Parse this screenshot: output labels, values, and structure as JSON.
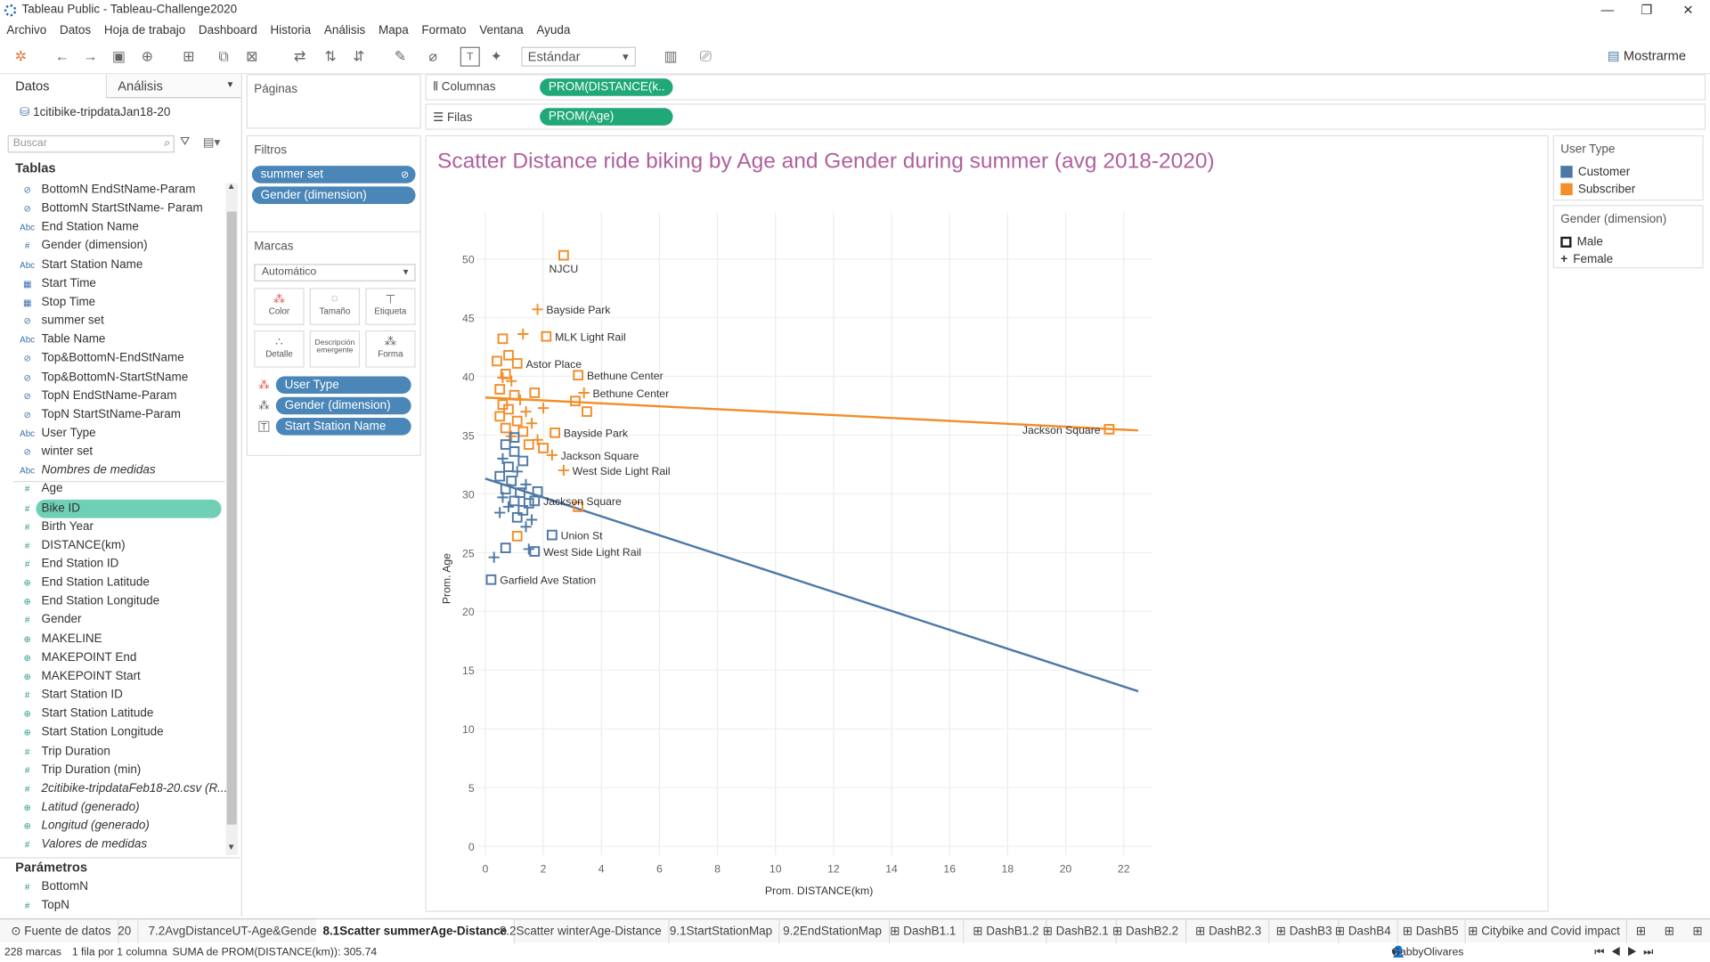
{
  "window": {
    "title": "Tableau Public - Tableau-Challenge2020"
  },
  "menu": [
    "Archivo",
    "Datos",
    "Hoja de trabajo",
    "Dashboard",
    "Historia",
    "Análisis",
    "Mapa",
    "Formato",
    "Ventana",
    "Ayuda"
  ],
  "toolbar": {
    "fit": "Estándar",
    "show_me": "Mostrarme"
  },
  "sidebar": {
    "tab_data": "Datos",
    "tab_analytics": "Análisis",
    "datasource": "1citibike-tripdataJan18-20",
    "search_placeholder": "Buscar",
    "tables_header": "Tablas",
    "params_header": "Parámetros",
    "fields": [
      {
        "label": "BottomN EndStName-Param",
        "icon": "set-icon",
        "kind": "dim"
      },
      {
        "label": "BottomN StartStName- Param",
        "icon": "set-icon",
        "kind": "dim"
      },
      {
        "label": "End Station Name",
        "icon": "abc-icon",
        "kind": "dim"
      },
      {
        "label": "Gender (dimension)",
        "icon": "number-icon",
        "kind": "dim"
      },
      {
        "label": "Start Station Name",
        "icon": "abc-icon",
        "kind": "dim"
      },
      {
        "label": "Start Time",
        "icon": "calendar-icon",
        "kind": "dim"
      },
      {
        "label": "Stop Time",
        "icon": "calendar-icon",
        "kind": "dim"
      },
      {
        "label": "summer set",
        "icon": "set-icon",
        "kind": "dim"
      },
      {
        "label": "Table Name",
        "icon": "abc-icon",
        "kind": "dim"
      },
      {
        "label": "Top&BottomN-EndStName",
        "icon": "set-icon",
        "kind": "dim"
      },
      {
        "label": "Top&BottomN-StartStName",
        "icon": "set-icon",
        "kind": "dim"
      },
      {
        "label": "TopN EndStName-Param",
        "icon": "set-icon",
        "kind": "dim"
      },
      {
        "label": "TopN StartStName-Param",
        "icon": "set-icon",
        "kind": "dim"
      },
      {
        "label": "User Type",
        "icon": "abc-icon",
        "kind": "dim"
      },
      {
        "label": "winter set",
        "icon": "set-icon",
        "kind": "dim"
      },
      {
        "label": "Nombres de medidas",
        "icon": "abc-icon",
        "kind": "dim",
        "italic": true
      },
      {
        "label": "Age",
        "icon": "number-icon",
        "kind": "mea"
      },
      {
        "label": "Bike ID",
        "icon": "number-icon",
        "kind": "mea",
        "selected": true
      },
      {
        "label": "Birth Year",
        "icon": "number-icon",
        "kind": "mea"
      },
      {
        "label": "DISTANCE(km)",
        "icon": "number-icon",
        "kind": "mea"
      },
      {
        "label": "End Station ID",
        "icon": "number-icon",
        "kind": "mea"
      },
      {
        "label": "End Station Latitude",
        "icon": "globe-icon",
        "kind": "mea"
      },
      {
        "label": "End Station Longitude",
        "icon": "globe-icon",
        "kind": "mea"
      },
      {
        "label": "Gender",
        "icon": "number-icon",
        "kind": "mea"
      },
      {
        "label": "MAKELINE",
        "icon": "globe-icon",
        "kind": "mea"
      },
      {
        "label": "MAKEPOINT End",
        "icon": "globe-icon",
        "kind": "mea"
      },
      {
        "label": "MAKEPOINT Start",
        "icon": "globe-icon",
        "kind": "mea"
      },
      {
        "label": "Start Station ID",
        "icon": "number-icon",
        "kind": "mea"
      },
      {
        "label": "Start Station Latitude",
        "icon": "globe-icon",
        "kind": "mea"
      },
      {
        "label": "Start Station Longitude",
        "icon": "globe-icon",
        "kind": "mea"
      },
      {
        "label": "Trip Duration",
        "icon": "number-icon",
        "kind": "mea"
      },
      {
        "label": "Trip Duration (min)",
        "icon": "number-icon",
        "kind": "mea"
      },
      {
        "label": "2citibike-tripdataFeb18-20.csv (R...",
        "icon": "number-icon",
        "kind": "mea",
        "italic": true
      },
      {
        "label": "Latitud (generado)",
        "icon": "globe-icon",
        "kind": "mea",
        "italic": true
      },
      {
        "label": "Longitud (generado)",
        "icon": "globe-icon",
        "kind": "mea",
        "italic": true
      },
      {
        "label": "Valores de medidas",
        "icon": "number-icon",
        "kind": "mea",
        "italic": true
      }
    ],
    "params": [
      {
        "label": "BottomN",
        "icon": "number-icon"
      },
      {
        "label": "TopN",
        "icon": "number-icon"
      }
    ]
  },
  "cards": {
    "pages": "Páginas",
    "filters": "Filtros",
    "filter_pills": [
      "summer set",
      "Gender (dimension)"
    ],
    "marks": "Marcas",
    "mark_type": "Automático",
    "mark_buttons": [
      "Color",
      "Tamaño",
      "Etiqueta",
      "Detalle",
      "Descripción emergente",
      "Forma"
    ],
    "mark_pills": [
      "User Type",
      "Gender (dimension)",
      "Start Station Name"
    ]
  },
  "shelves": {
    "columns_label": "Columnas",
    "rows_label": "Filas",
    "columns_pill": "PROM(DISTANCE(k..",
    "rows_pill": "PROM(Age)"
  },
  "legends": {
    "user_type": {
      "title": "User Type",
      "items": [
        {
          "label": "Customer",
          "color": "#4e79a7"
        },
        {
          "label": "Subscriber",
          "color": "#f28e2b"
        }
      ]
    },
    "gender": {
      "title": "Gender (dimension)",
      "items": [
        {
          "label": "Male",
          "shape": "square"
        },
        {
          "label": "Female",
          "shape": "plus"
        }
      ]
    }
  },
  "chart_data": {
    "type": "scatter",
    "title": "Scatter Distance ride biking by Age and Gender during summer (avg 2018-2020)",
    "xlabel": "Prom. DISTANCE(km)",
    "ylabel": "Prom. Age",
    "xlim": [
      0,
      23
    ],
    "ylim": [
      0,
      53
    ],
    "xticks": [
      0,
      2,
      4,
      6,
      8,
      10,
      12,
      14,
      16,
      18,
      20,
      22
    ],
    "yticks": [
      0,
      5,
      10,
      15,
      20,
      25,
      30,
      35,
      40,
      45,
      50
    ],
    "grid": true,
    "colors": {
      "Customer": "#4e79a7",
      "Subscriber": "#f28e2b"
    },
    "trend_lines": [
      {
        "series": "Subscriber",
        "from": [
          0,
          38.2
        ],
        "to": [
          22.5,
          35.4
        ]
      },
      {
        "series": "Customer",
        "from": [
          0,
          31.3
        ],
        "to": [
          22.5,
          13.2
        ]
      }
    ],
    "points": [
      {
        "x": 2.7,
        "y": 50.3,
        "t": "Subscriber",
        "g": "Male",
        "label": "NJCU"
      },
      {
        "x": 1.8,
        "y": 45.7,
        "t": "Subscriber",
        "g": "Female",
        "label": "Bayside Park"
      },
      {
        "x": 2.1,
        "y": 43.4,
        "t": "Subscriber",
        "g": "Male",
        "label": "MLK Light Rail"
      },
      {
        "x": 1.1,
        "y": 41.1,
        "t": "Subscriber",
        "g": "Male",
        "label": "Astor Place"
      },
      {
        "x": 3.2,
        "y": 40.1,
        "t": "Subscriber",
        "g": "Male",
        "label": "Bethune Center"
      },
      {
        "x": 3.4,
        "y": 38.6,
        "t": "Subscriber",
        "g": "Female",
        "label": "Bethune Center"
      },
      {
        "x": 2.4,
        "y": 35.2,
        "t": "Subscriber",
        "g": "Male",
        "label": "Bayside Park"
      },
      {
        "x": 21.5,
        "y": 35.5,
        "t": "Subscriber",
        "g": "Male",
        "label": "Jackson Square"
      },
      {
        "x": 2.3,
        "y": 33.3,
        "t": "Subscriber",
        "g": "Female",
        "label": "Jackson Square"
      },
      {
        "x": 2.7,
        "y": 32.0,
        "t": "Subscriber",
        "g": "Female",
        "label": "West Side Light Rail"
      },
      {
        "x": 1.7,
        "y": 29.4,
        "t": "Customer",
        "g": "Male",
        "label": "Jackson Square"
      },
      {
        "x": 2.3,
        "y": 26.5,
        "t": "Customer",
        "g": "Male",
        "label": "Union St"
      },
      {
        "x": 1.7,
        "y": 25.1,
        "t": "Customer",
        "g": "Male",
        "label": "West Side Light Rail"
      },
      {
        "x": 0.2,
        "y": 22.7,
        "t": "Customer",
        "g": "Male",
        "label": "Garfield Ave Station"
      },
      {
        "x": 0.6,
        "y": 43.2,
        "t": "Subscriber",
        "g": "Male"
      },
      {
        "x": 1.3,
        "y": 43.6,
        "t": "Subscriber",
        "g": "Female"
      },
      {
        "x": 0.4,
        "y": 41.3,
        "t": "Subscriber",
        "g": "Male"
      },
      {
        "x": 0.7,
        "y": 40.2,
        "t": "Subscriber",
        "g": "Male"
      },
      {
        "x": 0.9,
        "y": 39.6,
        "t": "Subscriber",
        "g": "Female"
      },
      {
        "x": 0.5,
        "y": 38.9,
        "t": "Subscriber",
        "g": "Male"
      },
      {
        "x": 1.0,
        "y": 38.4,
        "t": "Subscriber",
        "g": "Male"
      },
      {
        "x": 1.2,
        "y": 38.0,
        "t": "Subscriber",
        "g": "Female"
      },
      {
        "x": 0.6,
        "y": 37.6,
        "t": "Subscriber",
        "g": "Male"
      },
      {
        "x": 0.8,
        "y": 37.2,
        "t": "Subscriber",
        "g": "Male"
      },
      {
        "x": 1.4,
        "y": 37.0,
        "t": "Subscriber",
        "g": "Female"
      },
      {
        "x": 0.5,
        "y": 36.6,
        "t": "Subscriber",
        "g": "Male"
      },
      {
        "x": 1.1,
        "y": 36.2,
        "t": "Subscriber",
        "g": "Male"
      },
      {
        "x": 1.6,
        "y": 36.0,
        "t": "Subscriber",
        "g": "Female"
      },
      {
        "x": 0.7,
        "y": 35.6,
        "t": "Subscriber",
        "g": "Male"
      },
      {
        "x": 1.3,
        "y": 35.3,
        "t": "Subscriber",
        "g": "Male"
      },
      {
        "x": 0.9,
        "y": 34.9,
        "t": "Subscriber",
        "g": "Female"
      },
      {
        "x": 1.8,
        "y": 34.6,
        "t": "Subscriber",
        "g": "Female"
      },
      {
        "x": 1.5,
        "y": 34.2,
        "t": "Subscriber",
        "g": "Male"
      },
      {
        "x": 2.0,
        "y": 33.9,
        "t": "Subscriber",
        "g": "Male"
      },
      {
        "x": 0.6,
        "y": 39.9,
        "t": "Subscriber",
        "g": "Female"
      },
      {
        "x": 1.7,
        "y": 38.6,
        "t": "Subscriber",
        "g": "Male"
      },
      {
        "x": 2.0,
        "y": 37.3,
        "t": "Subscriber",
        "g": "Female"
      },
      {
        "x": 3.1,
        "y": 37.9,
        "t": "Subscriber",
        "g": "Male"
      },
      {
        "x": 3.5,
        "y": 37.0,
        "t": "Subscriber",
        "g": "Male"
      },
      {
        "x": 3.2,
        "y": 28.9,
        "t": "Subscriber",
        "g": "Male"
      },
      {
        "x": 1.1,
        "y": 26.4,
        "t": "Subscriber",
        "g": "Male"
      },
      {
        "x": 0.8,
        "y": 41.8,
        "t": "Subscriber",
        "g": "Male"
      },
      {
        "x": 0.7,
        "y": 34.2,
        "t": "Customer",
        "g": "Male"
      },
      {
        "x": 1.0,
        "y": 33.6,
        "t": "Customer",
        "g": "Male"
      },
      {
        "x": 0.6,
        "y": 33.0,
        "t": "Customer",
        "g": "Female"
      },
      {
        "x": 1.3,
        "y": 32.8,
        "t": "Customer",
        "g": "Male"
      },
      {
        "x": 0.8,
        "y": 32.3,
        "t": "Customer",
        "g": "Male"
      },
      {
        "x": 1.1,
        "y": 31.9,
        "t": "Customer",
        "g": "Female"
      },
      {
        "x": 0.5,
        "y": 31.5,
        "t": "Customer",
        "g": "Male"
      },
      {
        "x": 0.9,
        "y": 31.1,
        "t": "Customer",
        "g": "Male"
      },
      {
        "x": 1.4,
        "y": 30.8,
        "t": "Customer",
        "g": "Female"
      },
      {
        "x": 0.7,
        "y": 30.4,
        "t": "Customer",
        "g": "Male"
      },
      {
        "x": 1.2,
        "y": 30.1,
        "t": "Customer",
        "g": "Male"
      },
      {
        "x": 0.6,
        "y": 29.7,
        "t": "Customer",
        "g": "Female"
      },
      {
        "x": 1.0,
        "y": 29.4,
        "t": "Customer",
        "g": "Male"
      },
      {
        "x": 1.5,
        "y": 29.2,
        "t": "Customer",
        "g": "Male"
      },
      {
        "x": 0.8,
        "y": 28.9,
        "t": "Customer",
        "g": "Female"
      },
      {
        "x": 1.3,
        "y": 28.6,
        "t": "Customer",
        "g": "Male"
      },
      {
        "x": 0.5,
        "y": 28.4,
        "t": "Customer",
        "g": "Female"
      },
      {
        "x": 1.1,
        "y": 28.0,
        "t": "Customer",
        "g": "Male"
      },
      {
        "x": 1.6,
        "y": 27.8,
        "t": "Customer",
        "g": "Female"
      },
      {
        "x": 1.8,
        "y": 30.2,
        "t": "Customer",
        "g": "Male"
      },
      {
        "x": 1.4,
        "y": 27.2,
        "t": "Customer",
        "g": "Female"
      },
      {
        "x": 0.7,
        "y": 25.4,
        "t": "Customer",
        "g": "Male"
      },
      {
        "x": 1.5,
        "y": 25.3,
        "t": "Customer",
        "g": "Female"
      },
      {
        "x": 0.3,
        "y": 24.6,
        "t": "Customer",
        "g": "Female"
      },
      {
        "x": 1.0,
        "y": 34.8,
        "t": "Customer",
        "g": "Male"
      }
    ]
  },
  "tabs": [
    "Fuente de datos",
    "20",
    "7.2AvgDistanceUT-Age&Gender",
    "8.1Scatter summerAge-Distance",
    "8.2Scatter winterAge-Distance",
    "9.1StartStationMap",
    "9.2EndStationMap",
    "DashB1.1",
    "DashB1.2",
    "DashB2.1",
    "DashB2.2",
    "DashB2.3",
    "DashB3",
    "DashB4",
    "DashB5",
    "Citybike and Covid impact"
  ],
  "active_tab": 3,
  "status": {
    "marks": "228 marcas",
    "rows_cols": "1 fila por 1 columna",
    "sum": "SUMA de PROM(DISTANCE(km)): 305.74",
    "user": "GabbyOlivares"
  }
}
